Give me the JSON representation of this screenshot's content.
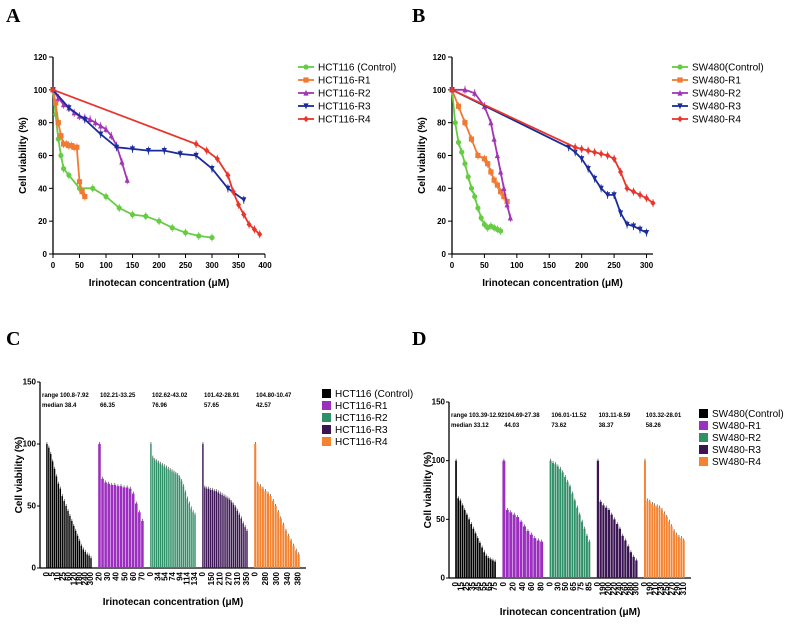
{
  "panels": {
    "a": "A",
    "b": "B",
    "c": "C",
    "d": "D"
  },
  "chart_data": [
    {
      "id": "A",
      "type": "line",
      "xlabel": "Irinotecan concentration (μM)",
      "ylabel": "Cell viability (%)",
      "xlim": [
        0,
        400
      ],
      "ylim": [
        0,
        120
      ],
      "xticks": [
        0,
        50,
        100,
        150,
        200,
        250,
        300,
        350,
        400
      ],
      "yticks": [
        0,
        20,
        40,
        60,
        80,
        100,
        120
      ],
      "series": [
        {
          "name": "HCT116 (Control)",
          "color": "#66cc44",
          "marker": "circle",
          "x": [
            0,
            5,
            10,
            15,
            20,
            30,
            50,
            75,
            100,
            125,
            150,
            175,
            200,
            225,
            250,
            275,
            300
          ],
          "y": [
            100,
            85,
            70,
            60,
            52,
            48,
            40,
            40,
            35,
            28,
            24,
            23,
            20,
            16,
            13,
            11,
            10
          ]
        },
        {
          "name": "HCT116-R1",
          "color": "#f07a33",
          "marker": "square",
          "x": [
            0,
            5,
            10,
            15,
            20,
            25,
            30,
            35,
            40,
            45,
            50,
            55,
            60
          ],
          "y": [
            100,
            92,
            80,
            72,
            67,
            67,
            66,
            66,
            65,
            65,
            44,
            38,
            35
          ]
        },
        {
          "name": "HCT116-R2",
          "color": "#a235b5",
          "marker": "triangle-up",
          "x": [
            0,
            10,
            20,
            30,
            40,
            50,
            60,
            70,
            80,
            90,
            100,
            110,
            120,
            130,
            140
          ],
          "y": [
            100,
            95,
            91,
            89,
            86,
            84,
            83,
            82,
            80,
            78,
            76,
            72,
            66,
            56,
            45
          ]
        },
        {
          "name": "HCT116-R3",
          "color": "#1a2b9a",
          "marker": "triangle-down",
          "x": [
            0,
            30,
            60,
            90,
            120,
            150,
            180,
            210,
            240,
            270,
            300,
            330,
            360
          ],
          "y": [
            100,
            89,
            82,
            73,
            65,
            64,
            63,
            63,
            61,
            60,
            52,
            40,
            33
          ]
        },
        {
          "name": "HCT116-R4",
          "color": "#e8362d",
          "marker": "diamond",
          "x": [
            0,
            270,
            290,
            310,
            330,
            340,
            350,
            360,
            370,
            380,
            390
          ],
          "y": [
            100,
            67,
            63,
            58,
            48,
            38,
            30,
            24,
            18,
            15,
            12
          ]
        }
      ]
    },
    {
      "id": "B",
      "type": "line",
      "xlabel": "Irinotecan concentration (μM)",
      "ylabel": "Cell viability (%)",
      "xlim": [
        0,
        310
      ],
      "ylim": [
        0,
        120
      ],
      "xticks": [
        0,
        50,
        100,
        150,
        200,
        250,
        300
      ],
      "yticks": [
        0,
        20,
        40,
        60,
        80,
        100,
        120
      ],
      "series": [
        {
          "name": "SW480(Control)",
          "color": "#66cc44",
          "marker": "circle",
          "x": [
            0,
            5,
            10,
            15,
            20,
            25,
            30,
            35,
            40,
            45,
            50,
            55,
            60,
            65,
            70,
            75
          ],
          "y": [
            100,
            80,
            68,
            62,
            55,
            47,
            40,
            35,
            28,
            22,
            18,
            16,
            17,
            16,
            15,
            14
          ]
        },
        {
          "name": "SW480-R1",
          "color": "#f07a33",
          "marker": "square",
          "x": [
            0,
            10,
            20,
            30,
            40,
            50,
            55,
            60,
            65,
            70,
            75,
            80,
            85
          ],
          "y": [
            100,
            90,
            80,
            70,
            60,
            58,
            55,
            50,
            45,
            42,
            38,
            35,
            32
          ]
        },
        {
          "name": "SW480-R2",
          "color": "#a235b5",
          "marker": "triangle-up",
          "x": [
            0,
            20,
            35,
            50,
            60,
            65,
            70,
            75,
            80,
            85,
            90
          ],
          "y": [
            100,
            100,
            98,
            90,
            80,
            70,
            60,
            50,
            40,
            30,
            22
          ]
        },
        {
          "name": "SW480-R3",
          "color": "#1a2b9a",
          "marker": "triangle-down",
          "x": [
            0,
            180,
            190,
            200,
            210,
            220,
            230,
            240,
            250,
            260,
            270,
            280,
            290,
            300
          ],
          "y": [
            100,
            65,
            62,
            58,
            52,
            46,
            40,
            36,
            36,
            25,
            18,
            17,
            15,
            13
          ]
        },
        {
          "name": "SW480-R4",
          "color": "#e8362d",
          "marker": "diamond",
          "x": [
            0,
            190,
            200,
            210,
            220,
            230,
            240,
            250,
            260,
            270,
            280,
            290,
            300,
            310
          ],
          "y": [
            100,
            65,
            64,
            63,
            62,
            61,
            60,
            58,
            50,
            40,
            38,
            36,
            34,
            31
          ]
        }
      ]
    },
    {
      "id": "C",
      "type": "bar",
      "xlabel": "Irinotecan concentration (μM)",
      "ylabel": "Cell viability (%)",
      "ylim": [
        0,
        150
      ],
      "yticks": [
        0,
        50,
        100,
        150
      ],
      "series": [
        {
          "name": "HCT116 (Control)",
          "color": "#000000",
          "tick_labels": [
            "0",
            "5",
            "10",
            "25",
            "60",
            "120",
            "180",
            "240",
            "300"
          ],
          "values": [
            100,
            97,
            92,
            86,
            80,
            74,
            68,
            64,
            58,
            54,
            50,
            46,
            42,
            38,
            34,
            30,
            26,
            22,
            18,
            15,
            13,
            11,
            10,
            8
          ]
        },
        {
          "name": "HCT116-R1",
          "color": "#9c2fbf",
          "tick_labels": [
            "20",
            "30",
            "40",
            "50",
            "60",
            "70"
          ],
          "values": [
            100,
            72,
            69,
            68,
            67,
            67,
            66,
            66,
            65,
            65,
            64,
            60,
            52,
            45,
            38
          ]
        },
        {
          "name": "HCT116-R2",
          "color": "#2f8f67",
          "tick_labels": [
            "0",
            "34",
            "54",
            "74",
            "94",
            "114",
            "134"
          ],
          "values": [
            100,
            89,
            87,
            86,
            85,
            84,
            83,
            82,
            81,
            80,
            79,
            78,
            77,
            76,
            75,
            73,
            70,
            66,
            61,
            56,
            52,
            48,
            45,
            43
          ]
        },
        {
          "name": "HCT116-R3",
          "color": "#3b1553",
          "tick_labels": [
            "0",
            "150",
            "210",
            "270",
            "310",
            "350"
          ],
          "values": [
            100,
            65,
            64,
            64,
            63,
            63,
            62,
            62,
            61,
            60,
            59,
            58,
            57,
            56,
            55,
            53,
            51,
            49,
            46,
            43,
            40,
            36,
            33,
            30
          ]
        },
        {
          "name": "HCT116-R4",
          "color": "#f5822f",
          "tick_labels": [
            "0",
            "280",
            "300",
            "340",
            "380"
          ],
          "values": [
            100,
            68,
            66,
            64,
            62,
            60,
            58,
            54,
            50,
            45,
            40,
            35,
            30,
            26,
            22,
            18,
            14,
            11
          ]
        }
      ],
      "annotations": [
        {
          "range": "range 100.8-7.92",
          "median": "median   38.4"
        },
        {
          "range": "102.21-33.25",
          "median": "66.35"
        },
        {
          "range": "102.62-43.02",
          "median": "76.96"
        },
        {
          "range": "101.42-28.91",
          "median": "57.65"
        },
        {
          "range": "104.80-10.47",
          "median": "42.57"
        }
      ]
    },
    {
      "id": "D",
      "type": "bar",
      "xlabel": "Irinotecan concentration (μM)",
      "ylabel": "Cell viability (%)",
      "ylim": [
        0,
        150
      ],
      "yticks": [
        0,
        50,
        100,
        150
      ],
      "series": [
        {
          "name": "SW480(Control)",
          "color": "#000000",
          "tick_labels": [
            "0",
            "15",
            "25",
            "35",
            "45",
            "55",
            "65",
            "75"
          ],
          "values": [
            100,
            68,
            66,
            62,
            58,
            54,
            50,
            46,
            42,
            38,
            34,
            30,
            26,
            22,
            19,
            17,
            16,
            15,
            14
          ]
        },
        {
          "name": "SW480-R1",
          "color": "#9c2fbf",
          "tick_labels": [
            "0",
            "20",
            "40",
            "60",
            "80"
          ],
          "values": [
            100,
            58,
            56,
            54,
            52,
            48,
            44,
            40,
            37,
            34,
            32,
            31
          ]
        },
        {
          "name": "SW480-R2",
          "color": "#2f8f67",
          "tick_labels": [
            "0",
            "30",
            "50",
            "65",
            "75",
            "85"
          ],
          "values": [
            100,
            98,
            97,
            95,
            93,
            90,
            86,
            82,
            78,
            72,
            66,
            60,
            54,
            48,
            42,
            36,
            31
          ]
        },
        {
          "name": "SW480-R3",
          "color": "#3b1553",
          "tick_labels": [
            "0",
            "190",
            "200",
            "220",
            "240",
            "260",
            "280",
            "300"
          ],
          "values": [
            100,
            65,
            62,
            60,
            58,
            54,
            50,
            46,
            42,
            36,
            32,
            27,
            22,
            18,
            15
          ]
        },
        {
          "name": "SW480-R4",
          "color": "#f5822f",
          "tick_labels": [
            "0",
            "190",
            "210",
            "230",
            "250",
            "270",
            "290",
            "310"
          ],
          "values": [
            100,
            66,
            65,
            63,
            62,
            61,
            60,
            58,
            55,
            52,
            48,
            44,
            40,
            37,
            35,
            34,
            32
          ]
        }
      ],
      "annotations": [
        {
          "range": "range 103.39-12.92",
          "median": "median 33.12"
        },
        {
          "range": "104.69-27.38",
          "median": "44.03"
        },
        {
          "range": "106.01-11.52",
          "median": "73.62"
        },
        {
          "range": "103.11-8.59",
          "median": "38.37"
        },
        {
          "range": "103.32-28.01",
          "median": "58.26"
        }
      ]
    }
  ]
}
